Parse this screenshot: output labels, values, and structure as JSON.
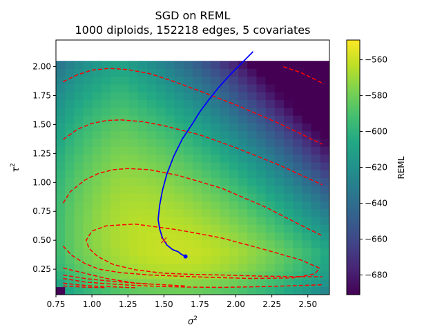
{
  "chart_data": {
    "type": "heatmap",
    "title": "SGD on REML",
    "subtitle": "1000 diploids, 152218 edges, 5 covariates",
    "xlabel": "σ",
    "xlabel_sup": "2",
    "ylabel": "τ",
    "ylabel_sup": "2",
    "xlim": [
      0.75,
      2.65
    ],
    "ylim": [
      0.03,
      2.23
    ],
    "heatmap_extent": {
      "x": [
        0.75,
        2.65
      ],
      "y": [
        0.03,
        2.05
      ]
    },
    "x_ticks": [
      0.75,
      1.0,
      1.25,
      1.5,
      1.75,
      2.0,
      2.25,
      2.5
    ],
    "x_tick_labels": [
      "0.75",
      "1.00",
      "1.25",
      "1.50",
      "1.75",
      "2.00",
      "2.25",
      "2.50"
    ],
    "y_ticks": [
      0.25,
      0.5,
      0.75,
      1.0,
      1.25,
      1.5,
      1.75,
      2.0
    ],
    "y_tick_labels": [
      "0.25",
      "0.50",
      "0.75",
      "1.00",
      "1.25",
      "1.50",
      "1.75",
      "2.00"
    ],
    "colorbar": {
      "label": "REML",
      "range": [
        -691,
        -549
      ],
      "ticks": [
        -680,
        -660,
        -640,
        -620,
        -600,
        -580,
        -560
      ],
      "tick_labels": [
        "−680",
        "−660",
        "−640",
        "−620",
        "−600",
        "−580",
        "−560"
      ],
      "colormap": "viridis"
    },
    "sgd_path": {
      "color": "#0000ff",
      "x": [
        2.12,
        2.04,
        1.96,
        1.88,
        1.81,
        1.75,
        1.7,
        1.63,
        1.57,
        1.52,
        1.49,
        1.47,
        1.46,
        1.47,
        1.49,
        1.52,
        1.56,
        1.6,
        1.62,
        1.65
      ],
      "y": [
        2.13,
        2.03,
        1.93,
        1.82,
        1.71,
        1.61,
        1.51,
        1.38,
        1.23,
        1.07,
        0.93,
        0.8,
        0.68,
        0.6,
        0.52,
        0.46,
        0.42,
        0.4,
        0.38,
        0.36
      ],
      "endpoint": {
        "x": 1.65,
        "y": 0.36
      }
    },
    "true_value_marker": {
      "x": 1.5,
      "y": 0.5,
      "symbol": "x",
      "color": "#e02020"
    },
    "contours": {
      "color": "#ff0000",
      "style": "dashed",
      "lines": [
        {
          "x": [
            0.8,
            0.9,
            1.0,
            1.12,
            1.25,
            1.4,
            1.55,
            1.75,
            2.0,
            2.3,
            2.6
          ],
          "y": [
            1.87,
            1.93,
            1.97,
            1.985,
            1.975,
            1.94,
            1.88,
            1.79,
            1.67,
            1.51,
            1.33
          ]
        },
        {
          "x": [
            0.8,
            0.9,
            1.0,
            1.1,
            1.2,
            1.35,
            1.5,
            1.75,
            2.0,
            2.3,
            2.6
          ],
          "y": [
            1.37,
            1.46,
            1.51,
            1.535,
            1.54,
            1.525,
            1.49,
            1.41,
            1.3,
            1.15,
            0.98
          ]
        },
        {
          "x": [
            0.8,
            0.85,
            0.95,
            1.05,
            1.15,
            1.25,
            1.4,
            1.6,
            1.9,
            2.2,
            2.5,
            2.6
          ],
          "y": [
            0.82,
            0.92,
            1.02,
            1.08,
            1.11,
            1.12,
            1.11,
            1.06,
            0.95,
            0.79,
            0.6,
            0.54
          ]
        },
        {
          "x": [
            0.8,
            0.86,
            0.95,
            1.05,
            1.2,
            1.4,
            1.6,
            1.8,
            2.1,
            2.4,
            2.55,
            2.58,
            2.45,
            2.2,
            1.9,
            1.6,
            1.3,
            1.1,
            1.0,
            0.96,
            0.98,
            1.04,
            1.15,
            1.3,
            1.5,
            1.7,
            1.9,
            2.2,
            2.5,
            2.6
          ],
          "y": [
            0.45,
            0.37,
            0.3,
            0.25,
            0.22,
            0.2,
            0.19,
            0.18,
            0.17,
            0.175,
            0.21,
            0.26,
            0.33,
            0.42,
            0.52,
            0.59,
            0.64,
            0.625,
            0.58,
            0.5,
            0.43,
            0.36,
            0.29,
            0.245,
            0.215,
            0.205,
            0.2,
            0.19,
            0.185,
            0.185
          ]
        },
        {
          "x": [
            0.8,
            0.9,
            1.0,
            1.1,
            1.2,
            1.3,
            1.4
          ],
          "y": [
            0.26,
            0.23,
            0.2,
            0.17,
            0.15,
            0.13,
            0.12
          ]
        },
        {
          "x": [
            0.8,
            0.95,
            1.1,
            1.3,
            1.5,
            1.65
          ],
          "y": [
            0.2,
            0.17,
            0.15,
            0.13,
            0.115,
            0.105
          ]
        },
        {
          "x": [
            0.8,
            0.95,
            1.1,
            1.3,
            1.5,
            1.7,
            1.9,
            2.2,
            2.6
          ],
          "y": [
            0.17,
            0.14,
            0.125,
            0.11,
            0.1,
            0.095,
            0.093,
            0.1,
            0.115
          ]
        },
        {
          "x": [
            0.8,
            0.9,
            1.0,
            1.1,
            1.2,
            1.3
          ],
          "y": [
            0.13,
            0.115,
            0.105,
            0.1,
            0.095,
            0.09
          ]
        },
        {
          "x": [
            0.8,
            0.95,
            1.1
          ],
          "y": [
            0.105,
            0.095,
            0.09
          ]
        },
        {
          "x": [
            2.33,
            2.45,
            2.55,
            2.61
          ],
          "y": [
            2.0,
            1.95,
            1.89,
            1.85
          ]
        }
      ]
    }
  }
}
